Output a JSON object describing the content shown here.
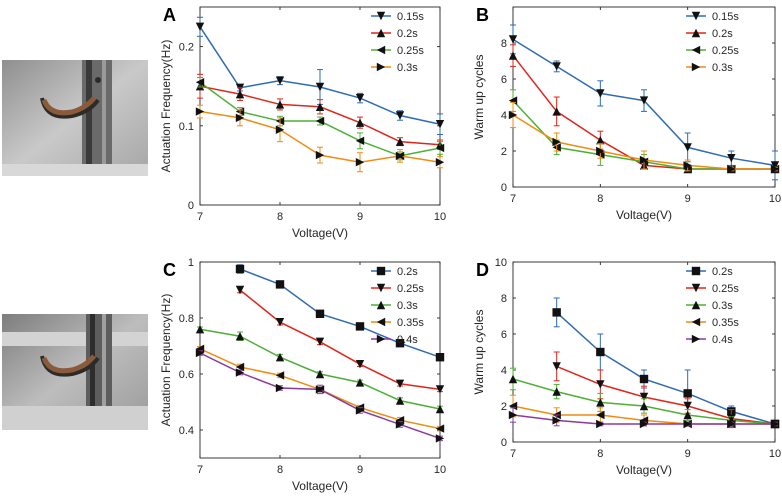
{
  "photos": [
    {
      "description_icon": "actuator-photo-icon"
    },
    {
      "description_icon": "actuator-photo-icon"
    }
  ],
  "colors": {
    "blue": "#2f6bb5",
    "red": "#e0261b",
    "green": "#4db034",
    "orange": "#f08c12",
    "purple": "#8a3a9e"
  },
  "chart_data": [
    {
      "id": "A",
      "panel_label": "A",
      "type": "line",
      "xlabel": "Voltage(V)",
      "ylabel": "Actuation Frequency(Hz)",
      "xlim": [
        7,
        10
      ],
      "ylim": [
        0,
        0.25
      ],
      "xticks": [
        7,
        8,
        9,
        10
      ],
      "yticks": [
        0,
        0.1,
        0.2
      ],
      "ytick_labels": [
        "0",
        "0.1",
        "0.2"
      ],
      "x": [
        7,
        7.5,
        8,
        8.5,
        9,
        9.5,
        10
      ],
      "legend_position": "top-right",
      "series": [
        {
          "name": "0.15s",
          "color": "#2f6bb5",
          "marker": "tri-down",
          "values": [
            0.225,
            0.148,
            0.157,
            0.149,
            0.135,
            0.113,
            0.102
          ],
          "errors": [
            0.012,
            0.004,
            0.005,
            0.022,
            0.006,
            0.006,
            0.013
          ]
        },
        {
          "name": "0.2s",
          "color": "#e0261b",
          "marker": "tri-up",
          "values": [
            0.15,
            0.14,
            0.127,
            0.124,
            0.104,
            0.08,
            0.076
          ],
          "errors": [
            0.015,
            0.008,
            0.007,
            0.009,
            0.007,
            0.005,
            0.006
          ]
        },
        {
          "name": "0.25s",
          "color": "#4db034",
          "marker": "tri-left",
          "values": [
            0.155,
            0.118,
            0.106,
            0.106,
            0.081,
            0.062,
            0.072
          ],
          "errors": [
            0.006,
            0.005,
            0.006,
            0.005,
            0.01,
            0.005,
            0.008
          ]
        },
        {
          "name": "0.3s",
          "color": "#f08c12",
          "marker": "tri-right",
          "values": [
            0.118,
            0.11,
            0.095,
            0.063,
            0.054,
            0.062,
            0.054
          ],
          "errors": [
            0.008,
            0.01,
            0.015,
            0.01,
            0.012,
            0.008,
            0.007
          ]
        }
      ]
    },
    {
      "id": "B",
      "panel_label": "B",
      "type": "line",
      "xlabel": "Voltage(V)",
      "ylabel": "Warm up cycles",
      "xlim": [
        7,
        10
      ],
      "ylim": [
        0,
        10
      ],
      "xticks": [
        7,
        8,
        9,
        10
      ],
      "yticks": [
        0,
        2,
        4,
        6,
        8
      ],
      "ytick_labels": [
        "0",
        "2",
        "4",
        "6",
        "8"
      ],
      "x": [
        7,
        7.5,
        8,
        8.5,
        9,
        9.5,
        10
      ],
      "legend_position": "top-right",
      "series": [
        {
          "name": "0.15s",
          "color": "#2f6bb5",
          "marker": "tri-down",
          "values": [
            8.2,
            6.7,
            5.2,
            4.8,
            2.2,
            1.6,
            1.2
          ],
          "errors": [
            0.8,
            0.3,
            0.7,
            0.6,
            0.8,
            0.4,
            0.8
          ]
        },
        {
          "name": "0.2s",
          "color": "#e0261b",
          "marker": "tri-up",
          "values": [
            7.3,
            4.2,
            2.6,
            1.2,
            1.0,
            1.0,
            1.0
          ],
          "errors": [
            0.6,
            0.8,
            0.5,
            0.2,
            0.2,
            0.1,
            0.1
          ]
        },
        {
          "name": "0.25s",
          "color": "#4db034",
          "marker": "tri-left",
          "values": [
            4.8,
            2.2,
            1.8,
            1.4,
            1.0,
            1.0,
            1.0
          ],
          "errors": [
            0.6,
            0.4,
            0.6,
            0.4,
            0.1,
            0.1,
            0.1
          ]
        },
        {
          "name": "0.3s",
          "color": "#f08c12",
          "marker": "tri-right",
          "values": [
            4.0,
            2.5,
            2.0,
            1.5,
            1.2,
            1.0,
            1.0
          ],
          "errors": [
            0.7,
            0.5,
            0.4,
            0.5,
            0.3,
            0.1,
            0.1
          ]
        }
      ]
    },
    {
      "id": "C",
      "panel_label": "C",
      "type": "line",
      "xlabel": "Voltage(V)",
      "ylabel": "Actuation Frequency(Hz)",
      "xlim": [
        7,
        10
      ],
      "ylim": [
        0.3,
        1.0
      ],
      "xticks": [
        7,
        8,
        9,
        10
      ],
      "yticks": [
        0.4,
        0.6,
        0.8,
        1.0
      ],
      "ytick_labels": [
        "0.4",
        "0.6",
        "0.8",
        "1"
      ],
      "x": [
        7,
        7.5,
        8,
        8.5,
        9,
        9.5,
        10
      ],
      "legend_position": "top-right",
      "series": [
        {
          "name": "0.2s",
          "color": "#2f6bb5",
          "marker": "square",
          "values": [
            null,
            0.975,
            0.92,
            0.815,
            0.77,
            0.71,
            0.66
          ],
          "errors": [
            0,
            0.015,
            0.01,
            0.01,
            0.008,
            0.008,
            0.012
          ]
        },
        {
          "name": "0.25s",
          "color": "#e0261b",
          "marker": "tri-down",
          "values": [
            null,
            0.9,
            0.785,
            0.715,
            0.635,
            0.565,
            0.545
          ],
          "errors": [
            0,
            0.01,
            0.01,
            0.01,
            0.008,
            0.008,
            0.008
          ]
        },
        {
          "name": "0.3s",
          "color": "#4db034",
          "marker": "tri-up",
          "values": [
            0.76,
            0.735,
            0.66,
            0.6,
            0.57,
            0.505,
            0.475
          ],
          "errors": [
            0.008,
            0.015,
            0.01,
            0.008,
            0.008,
            0.01,
            0.01
          ]
        },
        {
          "name": "0.35s",
          "color": "#f08c12",
          "marker": "tri-left",
          "values": [
            0.69,
            0.625,
            0.595,
            0.545,
            0.48,
            0.435,
            0.405
          ],
          "errors": [
            0.008,
            0.01,
            0.008,
            0.008,
            0.008,
            0.01,
            0.008
          ]
        },
        {
          "name": "0.4s",
          "color": "#8a3a9e",
          "marker": "tri-right",
          "values": [
            0.675,
            0.605,
            0.55,
            0.545,
            0.47,
            0.42,
            0.37
          ],
          "errors": [
            0.008,
            0.008,
            0.008,
            0.015,
            0.01,
            0.01,
            0.008
          ]
        }
      ]
    },
    {
      "id": "D",
      "panel_label": "D",
      "type": "line",
      "xlabel": "Voltage(V)",
      "ylabel": "Warm up cycles",
      "xlim": [
        7,
        10
      ],
      "ylim": [
        0,
        10
      ],
      "xticks": [
        7,
        8,
        9,
        10
      ],
      "yticks": [
        0,
        2,
        4,
        6,
        8,
        10
      ],
      "ytick_labels": [
        "0",
        "2",
        "4",
        "6",
        "8",
        "10"
      ],
      "x": [
        7,
        7.5,
        8,
        8.5,
        9,
        9.5,
        10
      ],
      "legend_position": "top-right",
      "series": [
        {
          "name": "0.2s",
          "color": "#2f6bb5",
          "marker": "square",
          "values": [
            null,
            7.2,
            5.0,
            3.5,
            2.7,
            1.7,
            1.0
          ],
          "errors": [
            0,
            0.8,
            1.0,
            0.5,
            1.3,
            0.3,
            0.1
          ]
        },
        {
          "name": "0.25s",
          "color": "#e0261b",
          "marker": "tri-down",
          "values": [
            null,
            4.2,
            3.2,
            2.5,
            2.0,
            1.3,
            1.0
          ],
          "errors": [
            0,
            0.8,
            0.8,
            0.6,
            0.4,
            0.5,
            0.1
          ]
        },
        {
          "name": "0.3s",
          "color": "#4db034",
          "marker": "tri-up",
          "values": [
            3.5,
            2.8,
            2.2,
            2.0,
            1.5,
            1.2,
            1.0
          ],
          "errors": [
            0.6,
            0.4,
            0.5,
            0.4,
            0.3,
            0.2,
            0.1
          ]
        },
        {
          "name": "0.35s",
          "color": "#f08c12",
          "marker": "tri-left",
          "values": [
            2.0,
            1.5,
            1.5,
            1.2,
            1.0,
            1.0,
            1.0
          ],
          "errors": [
            0.6,
            0.4,
            0.4,
            0.3,
            0.1,
            0.1,
            0.1
          ]
        },
        {
          "name": "0.4s",
          "color": "#8a3a9e",
          "marker": "tri-right",
          "values": [
            1.5,
            1.2,
            1.0,
            1.0,
            1.0,
            1.0,
            1.0
          ],
          "errors": [
            0.4,
            0.3,
            0.1,
            0.1,
            0.1,
            0.1,
            0.1
          ]
        }
      ]
    }
  ]
}
